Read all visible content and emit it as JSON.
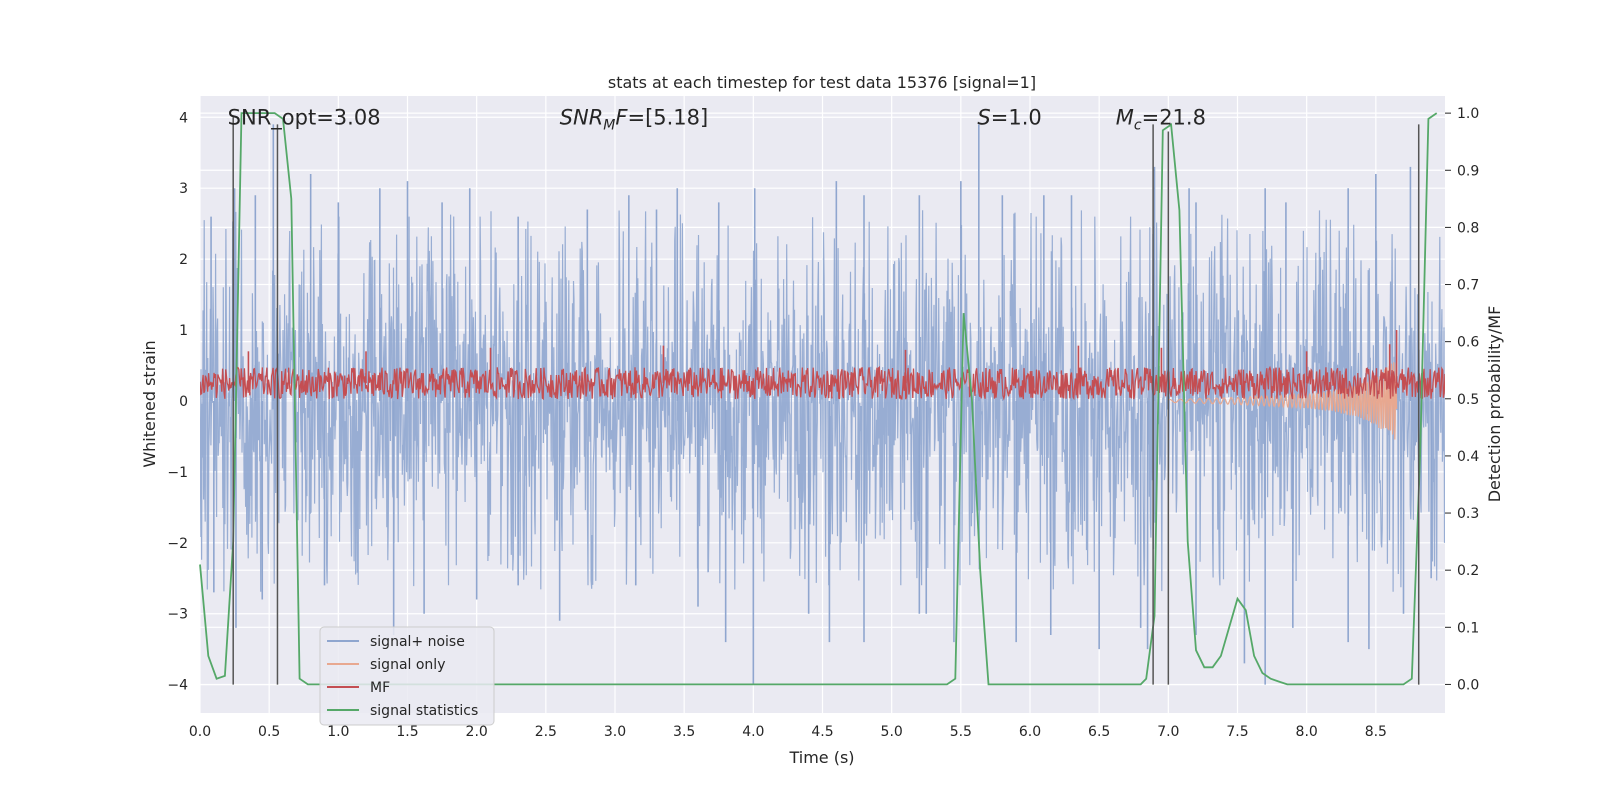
{
  "chart_data": {
    "type": "line",
    "title": "stats at each timestep for test data 15376 [signal=1]",
    "xlabel": "Time (s)",
    "ylabel": "Whitened strain",
    "ylabel_right": "Detection probability/MF",
    "xlim": [
      0.0,
      9.0
    ],
    "ylim": [
      -4.4,
      4.3
    ],
    "ylim_right": [
      -0.05,
      1.03
    ],
    "x_ticks": [
      0.0,
      0.5,
      1.0,
      1.5,
      2.0,
      2.5,
      3.0,
      3.5,
      4.0,
      4.5,
      5.0,
      5.5,
      6.0,
      6.5,
      7.0,
      7.5,
      8.0,
      8.5
    ],
    "x_tick_labels": [
      "0.0",
      "0.5",
      "1.0",
      "1.5",
      "2.0",
      "2.5",
      "3.0",
      "3.5",
      "4.0",
      "4.5",
      "5.0",
      "5.5",
      "6.0",
      "6.5",
      "7.0",
      "7.5",
      "8.0",
      "8.5"
    ],
    "y_ticks": [
      -4,
      -3,
      -2,
      -1,
      0,
      1,
      2,
      3,
      4
    ],
    "y_tick_labels": [
      "−4",
      "−3",
      "−2",
      "−1",
      "0",
      "1",
      "2",
      "3",
      "4"
    ],
    "y_right_ticks": [
      0.0,
      0.1,
      0.2,
      0.3,
      0.4,
      0.5,
      0.6,
      0.7,
      0.8,
      0.9,
      1.0
    ],
    "y_right_tick_labels": [
      "0.0",
      "0.1",
      "0.2",
      "0.3",
      "0.4",
      "0.5",
      "0.6",
      "0.7",
      "0.8",
      "0.9",
      "1.0"
    ],
    "grid": true,
    "legend_position": "lower-left",
    "annotations": [
      {
        "id": "snr-opt",
        "text": "SNR_opt=3.08",
        "x": 0.2,
        "y": 4.0
      },
      {
        "id": "snr-mf",
        "base": "SNR",
        "sub": "M",
        "tail": "F=[5.18]",
        "x": 2.6,
        "y": 4.0
      },
      {
        "id": "s-value",
        "base": "S",
        "sub": "",
        "tail": "=1.0",
        "x": 5.62,
        "y": 4.0
      },
      {
        "id": "mc-value",
        "base": "M",
        "sub": "c",
        "tail": "=21.8",
        "x": 6.62,
        "y": 4.0
      }
    ],
    "series": [
      {
        "name": "signal+ noise",
        "color": "#8fa6cf",
        "description_only": false,
        "envelope_upper": [
          [
            0.0,
            1.6
          ],
          [
            0.25,
            1.7
          ],
          [
            0.5,
            1.6
          ],
          [
            1.0,
            1.6
          ],
          [
            1.5,
            1.6
          ],
          [
            2.0,
            1.6
          ],
          [
            2.5,
            1.6
          ],
          [
            3.0,
            1.6
          ],
          [
            3.5,
            1.6
          ],
          [
            4.0,
            1.6
          ],
          [
            4.5,
            1.6
          ],
          [
            5.0,
            1.6
          ],
          [
            5.5,
            1.6
          ],
          [
            6.0,
            1.6
          ],
          [
            6.5,
            1.6
          ],
          [
            7.0,
            1.6
          ],
          [
            7.5,
            1.6
          ],
          [
            8.0,
            1.6
          ],
          [
            8.5,
            1.6
          ],
          [
            9.0,
            1.6
          ]
        ],
        "spikes_up": [
          [
            0.08,
            2.6
          ],
          [
            0.25,
            3.0
          ],
          [
            0.4,
            2.9
          ],
          [
            0.53,
            3.9
          ],
          [
            0.8,
            3.2
          ],
          [
            1.0,
            2.8
          ],
          [
            1.3,
            3.0
          ],
          [
            1.5,
            3.1
          ],
          [
            1.75,
            2.8
          ],
          [
            1.95,
            3.0
          ],
          [
            2.3,
            2.6
          ],
          [
            2.8,
            2.7
          ],
          [
            3.1,
            2.9
          ],
          [
            3.3,
            2.7
          ],
          [
            3.45,
            3.0
          ],
          [
            3.75,
            2.8
          ],
          [
            4.01,
            3.0
          ],
          [
            4.6,
            3.1
          ],
          [
            4.8,
            2.9
          ],
          [
            5.2,
            2.9
          ],
          [
            5.5,
            3.1
          ],
          [
            5.63,
            3.9
          ],
          [
            5.8,
            2.9
          ],
          [
            6.1,
            2.9
          ],
          [
            6.3,
            2.9
          ],
          [
            6.9,
            3.3
          ],
          [
            7.15,
            3.0
          ],
          [
            7.2,
            2.8
          ],
          [
            7.7,
            3.0
          ],
          [
            7.85,
            2.8
          ],
          [
            8.3,
            3.0
          ],
          [
            8.5,
            3.2
          ],
          [
            8.75,
            3.3
          ]
        ],
        "spikes_down": [
          [
            0.1,
            -2.7
          ],
          [
            0.26,
            -3.2
          ],
          [
            0.45,
            -2.8
          ],
          [
            0.9,
            -2.6
          ],
          [
            1.4,
            -3.3
          ],
          [
            1.62,
            -3.0
          ],
          [
            2.0,
            -2.8
          ],
          [
            2.3,
            -2.6
          ],
          [
            2.6,
            -3.1
          ],
          [
            3.15,
            -2.6
          ],
          [
            3.6,
            -2.9
          ],
          [
            3.8,
            -3.4
          ],
          [
            4.0,
            -4.0
          ],
          [
            4.4,
            -3.0
          ],
          [
            4.55,
            -3.4
          ],
          [
            4.8,
            -3.4
          ],
          [
            5.2,
            -3.0
          ],
          [
            5.25,
            -3.0
          ],
          [
            5.45,
            -3.4
          ],
          [
            5.9,
            -3.4
          ],
          [
            6.15,
            -3.3
          ],
          [
            6.5,
            -3.5
          ],
          [
            6.8,
            -3.2
          ],
          [
            6.85,
            -3.5
          ],
          [
            7.2,
            -3.3
          ],
          [
            7.55,
            -3.7
          ],
          [
            7.7,
            -4.0
          ],
          [
            7.9,
            -3.2
          ],
          [
            8.3,
            -3.4
          ],
          [
            8.45,
            -3.5
          ],
          [
            8.7,
            -3.0
          ],
          [
            8.9,
            -2.5
          ]
        ]
      },
      {
        "name": "signal only",
        "color": "#e8a890",
        "chirp": [
          [
            7.0,
            -0.02
          ],
          [
            7.5,
            -0.05
          ],
          [
            7.8,
            -0.08
          ],
          [
            8.0,
            -0.1
          ],
          [
            8.2,
            -0.15
          ],
          [
            8.4,
            -0.25
          ],
          [
            8.5,
            -0.35
          ],
          [
            8.6,
            -0.5
          ],
          [
            8.65,
            -0.6
          ]
        ]
      },
      {
        "name": "MF",
        "color": "#c44e52",
        "mean": 0.25,
        "band": [
          0.05,
          0.55
        ],
        "spikes": [
          [
            0.35,
            0.7
          ],
          [
            1.2,
            0.7
          ],
          [
            2.1,
            0.75
          ],
          [
            3.35,
            0.78
          ],
          [
            5.1,
            0.72
          ],
          [
            6.35,
            0.78
          ],
          [
            6.95,
            0.75
          ],
          [
            8.0,
            0.7
          ],
          [
            8.6,
            0.8
          ],
          [
            8.65,
            1.0
          ]
        ]
      },
      {
        "name": "signal statistics",
        "color": "#55a868",
        "axis": "right",
        "x": [
          0.0,
          0.06,
          0.12,
          0.18,
          0.24,
          0.3,
          0.36,
          0.42,
          0.48,
          0.54,
          0.6,
          0.66,
          0.72,
          0.78,
          0.9,
          1.2,
          2.0,
          3.0,
          4.0,
          5.0,
          5.4,
          5.46,
          5.52,
          5.58,
          5.64,
          5.7,
          6.0,
          6.5,
          6.8,
          6.84,
          6.9,
          6.96,
          7.02,
          7.08,
          7.14,
          7.2,
          7.26,
          7.32,
          7.38,
          7.44,
          7.5,
          7.56,
          7.62,
          7.68,
          7.74,
          7.8,
          7.86,
          8.0,
          8.5,
          8.7,
          8.76,
          8.82,
          8.88,
          8.94
        ],
        "y": [
          0.21,
          0.05,
          0.01,
          0.015,
          0.25,
          1.0,
          1.0,
          1.0,
          1.0,
          1.0,
          0.99,
          0.85,
          0.01,
          0.0,
          0.0,
          0.0,
          0.0,
          0.0,
          0.0,
          0.0,
          0.0,
          0.01,
          0.65,
          0.5,
          0.2,
          0.0,
          0.0,
          0.0,
          0.0,
          0.01,
          0.12,
          0.97,
          0.98,
          0.83,
          0.25,
          0.06,
          0.03,
          0.03,
          0.05,
          0.1,
          0.15,
          0.13,
          0.05,
          0.02,
          0.01,
          0.005,
          0.0,
          0.0,
          0.0,
          0.0,
          0.01,
          0.4,
          0.99,
          1.0
        ]
      }
    ],
    "vertical_markers": [
      {
        "x": 0.24,
        "y0": -4.0,
        "y1": 4.0
      },
      {
        "x": 0.56,
        "y0": -4.0,
        "y1": 3.9
      },
      {
        "x": 6.89,
        "y0": -4.0,
        "y1": 3.9
      },
      {
        "x": 7.0,
        "y0": -4.0,
        "y1": 3.8
      },
      {
        "x": 8.81,
        "y0": -4.0,
        "y1": 3.9
      }
    ]
  }
}
